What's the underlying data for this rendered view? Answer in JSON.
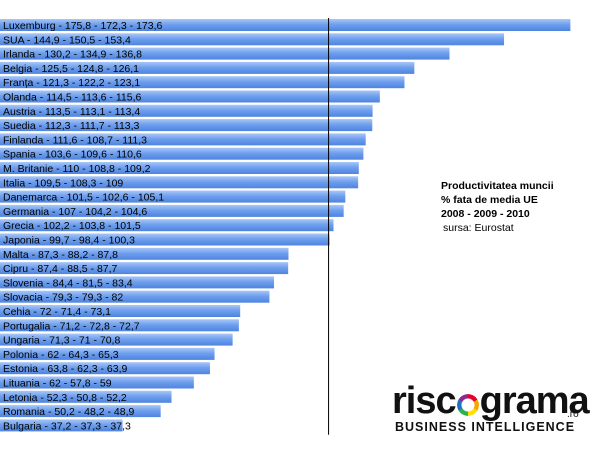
{
  "chart_data": {
    "type": "bar",
    "orientation": "horizontal",
    "title_lines": [
      "Productivitatea muncii",
      "% fata de media UE",
      "2008 - 2009 - 2010"
    ],
    "source": "sursa: Eurostat",
    "xlim": [
      0,
      182
    ],
    "grid": false,
    "bar_color": "#6fa0ee",
    "reference_value": 100,
    "categories": [
      "Luxemburg - 175,8 - 172,3 - 173,6",
      "SUA - 144,9 - 150,5 - 153,4",
      "Irlanda - 130,2 - 134,9 - 136,8",
      "Belgia - 125,5 - 124,8 - 126,1",
      "Franța - 121,3 - 122,2 - 123,1",
      "Olanda - 114,5 - 113,6 - 115,6",
      "Austria - 113,5 - 113,1 - 113,4",
      "Suedia - 112,3 - 111,7 - 113,3",
      "Finlanda - 111,6 - 108,7 - 111,3",
      "Spania - 103,6 - 109,6 - 110,6",
      "M. Britanie  - 110 - 108,8 - 109,2",
      "Italia - 109,5 - 108,3 - 109",
      "Danemarca - 101,5 - 102,6 - 105,1",
      "Germania - 107 - 104,2 - 104,6",
      "Grecia - 102,2 - 103,8 - 101,5",
      "Japonia - 99,7 - 98,4 - 100,3",
      "Malta - 87,3 - 88,2 - 87,8",
      "Cipru - 87,4 - 88,5 - 87,7",
      "Slovenia - 84,4 - 81,5 - 83,4",
      "Slovacia - 79,3 - 79,3 - 82",
      "Cehia - 72 - 71,4 - 73,1",
      "Portugalia - 71,2 - 72,8 - 72,7",
      "Ungaria - 71,3 - 71 - 70,8",
      "Polonia - 62 - 64,3 - 65,3",
      "Estonia - 63,8 - 62,3 - 63,9",
      "Lituania - 62 - 57,8 - 59",
      "Letonia - 52,3 - 50,8 - 52,2",
      "Romania - 50,2 - 48,2 - 48,9",
      "Bulgaria - 37,2 - 37,3 - 37,3"
    ],
    "values": [
      173.6,
      153.4,
      136.8,
      126.1,
      123.1,
      115.6,
      113.4,
      113.3,
      111.3,
      110.6,
      109.2,
      109,
      105.1,
      104.6,
      101.5,
      100.3,
      87.8,
      87.7,
      83.4,
      82,
      73.1,
      72.7,
      70.8,
      65.3,
      63.9,
      59,
      52.2,
      48.9,
      37.3
    ]
  },
  "logo": {
    "word_left": "risc",
    "word_right": "grama",
    "suffix": ".ro",
    "tagline": "BUSINESS INTELLIGENCE"
  }
}
